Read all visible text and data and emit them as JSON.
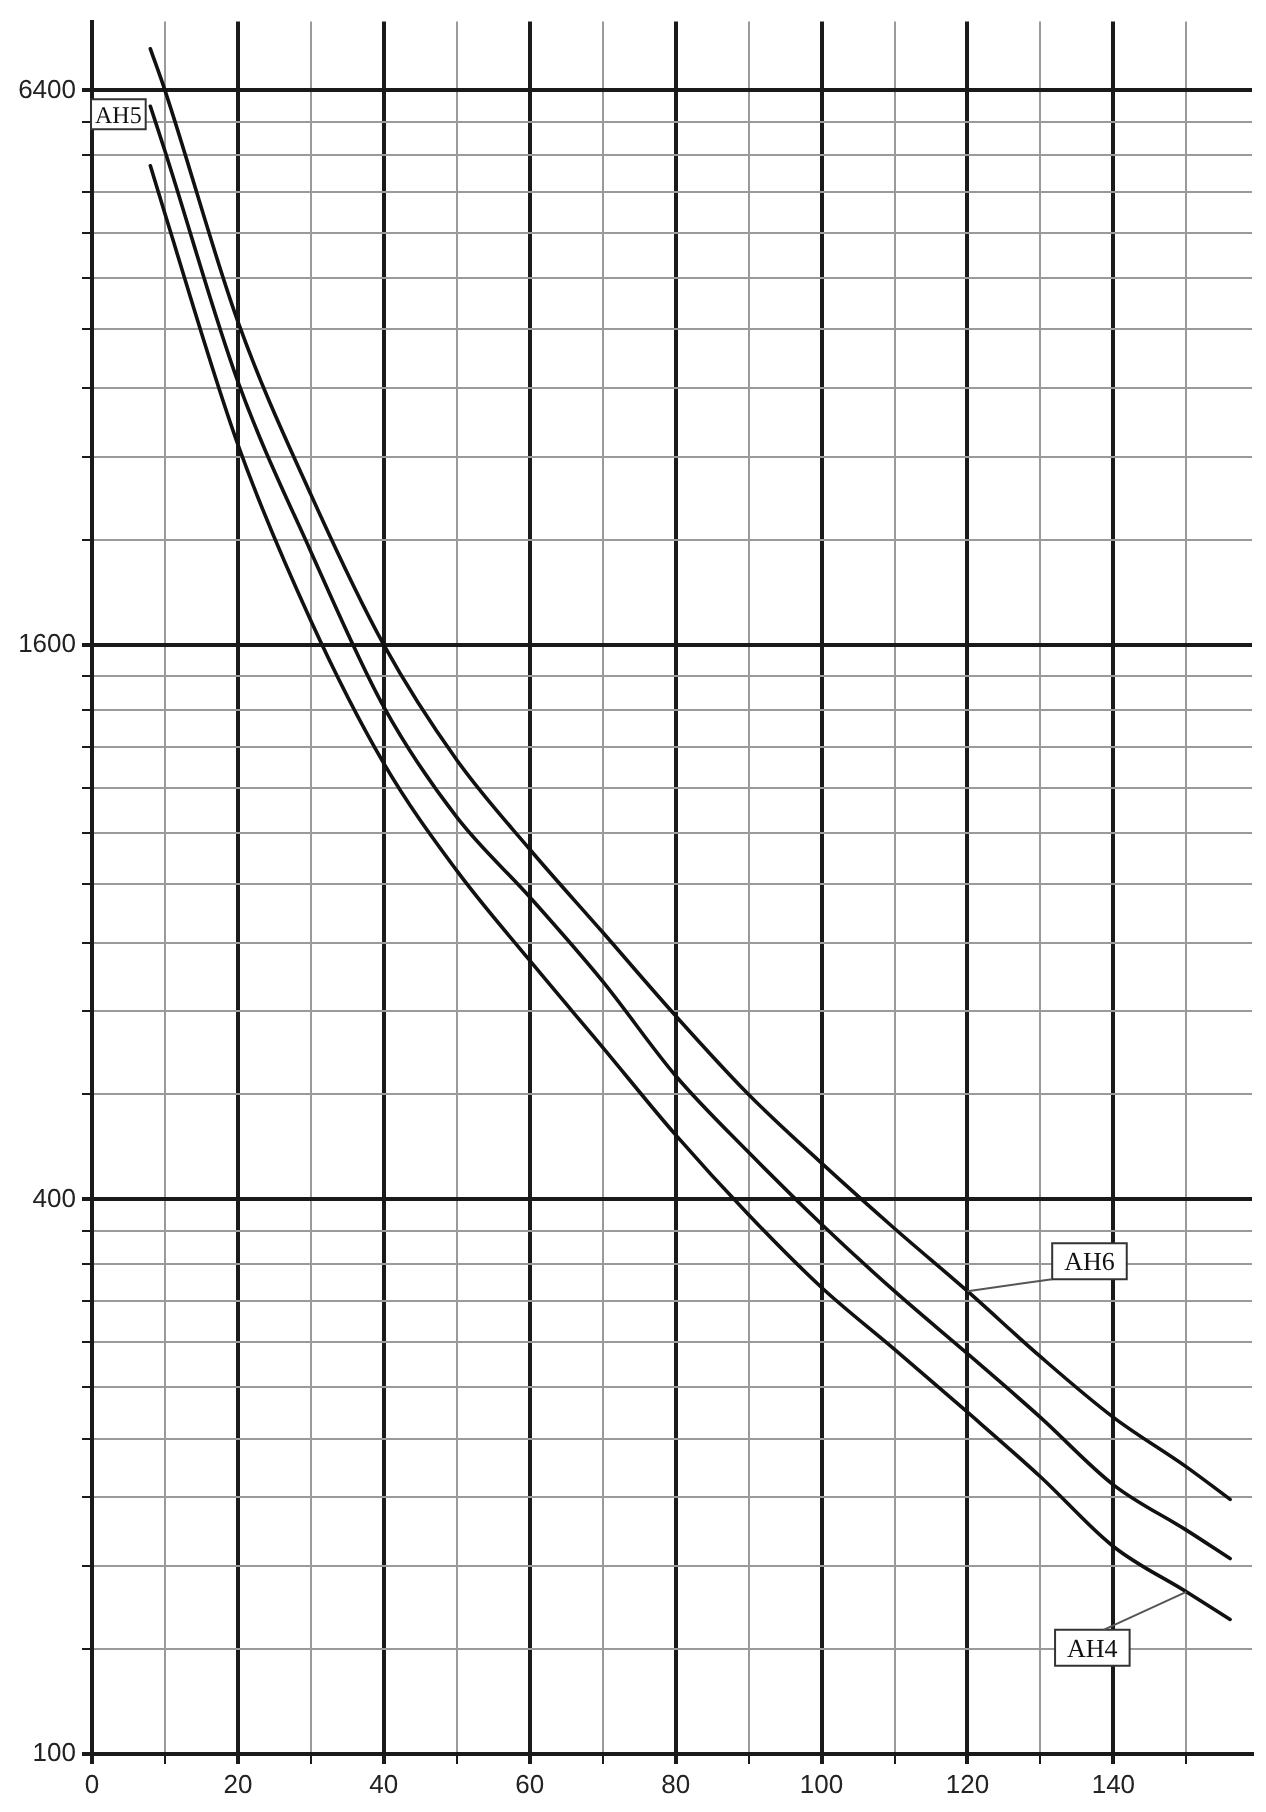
{
  "chart_data": {
    "type": "line",
    "x": [
      8,
      10,
      20,
      30,
      40,
      50,
      60,
      70,
      80,
      90,
      100,
      110,
      120,
      130,
      140,
      150,
      156
    ],
    "series": [
      {
        "name": "AH4",
        "color": "#111111",
        "values": [
          5300,
          4700,
          2640,
          1700,
          1190,
          910,
          727,
          585,
          470,
          385,
          321,
          275,
          235,
          200,
          168,
          150,
          140
        ]
      },
      {
        "name": "AH5",
        "color": "#111111",
        "values": [
          6150,
          5500,
          3090,
          2020,
          1370,
          1040,
          852,
          690,
          545,
          450,
          376,
          318,
          272,
          232,
          196,
          175,
          163
        ]
      },
      {
        "name": "AH6",
        "color": "#111111",
        "values": [
          7100,
          6400,
          3590,
          2330,
          1600,
          1200,
          960,
          780,
          633,
          520,
          438,
          372,
          318,
          270,
          232,
          205,
          189
        ]
      }
    ],
    "xlim": [
      0,
      159
    ],
    "xticks": [
      0,
      {
        "value": 10,
        "label": null
      },
      20,
      {
        "value": 30,
        "label": null
      },
      40,
      {
        "value": 50,
        "label": null
      },
      60,
      {
        "value": 70,
        "label": null
      },
      80,
      {
        "value": 90,
        "label": null
      },
      100,
      {
        "value": 110,
        "label": null
      },
      120,
      {
        "value": 130,
        "label": null
      },
      140,
      {
        "value": 150,
        "label": null
      }
    ],
    "ylim": [
      100,
      7600
    ],
    "yticks": [
      100,
      {
        "value": 130,
        "label": null
      },
      {
        "value": 160,
        "label": null
      },
      {
        "value": 190,
        "label": null
      },
      {
        "value": 220,
        "label": null
      },
      {
        "value": 250,
        "label": null
      },
      {
        "value": 280,
        "label": null
      },
      {
        "value": 310,
        "label": null
      },
      {
        "value": 340,
        "label": null
      },
      {
        "value": 370,
        "label": null
      },
      400,
      {
        "value": 520,
        "label": null
      },
      {
        "value": 640,
        "label": null
      },
      {
        "value": 760,
        "label": null
      },
      {
        "value": 880,
        "label": null
      },
      {
        "value": 1000,
        "label": null
      },
      {
        "value": 1120,
        "label": null
      },
      {
        "value": 1240,
        "label": null
      },
      {
        "value": 1360,
        "label": null
      },
      {
        "value": 1480,
        "label": null
      },
      1600,
      {
        "value": 2080,
        "label": null
      },
      {
        "value": 2560,
        "label": null
      },
      {
        "value": 3040,
        "label": null
      },
      {
        "value": 3520,
        "label": null
      },
      {
        "value": 4000,
        "label": null
      },
      {
        "value": 4480,
        "label": null
      },
      {
        "value": 4960,
        "label": null
      },
      {
        "value": 5440,
        "label": null
      },
      {
        "value": 5920,
        "label": null
      },
      6400
    ],
    "log": true,
    "grid": true,
    "legend": false,
    "marker": "none",
    "line_style": "solid"
  }
}
